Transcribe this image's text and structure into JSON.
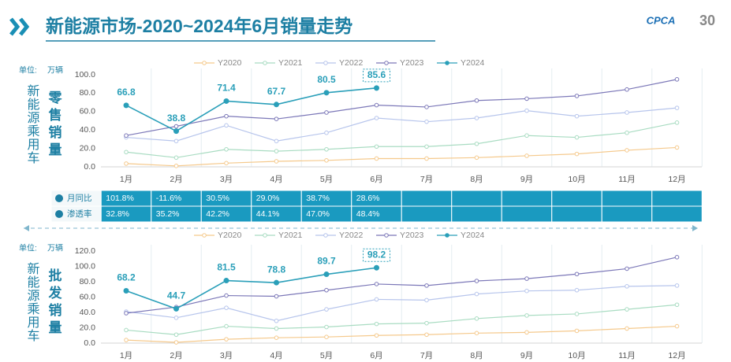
{
  "title": "新能源市场-2020~2024年6月销量走势",
  "logo": {
    "text": "CPCA",
    "badge": "30"
  },
  "chart_data": [
    {
      "type": "line",
      "unit_label": "单位:",
      "unit": "万辆",
      "side_label": "新能源乘用车",
      "y_label": "零售销量",
      "categories": [
        "1月",
        "2月",
        "3月",
        "4月",
        "5月",
        "6月",
        "7月",
        "8月",
        "9月",
        "10月",
        "11月",
        "12月"
      ],
      "ylim": [
        0,
        100
      ],
      "yticks": [
        {
          "value": 0,
          "label": "0.0"
        },
        {
          "value": 20,
          "label": "20.0"
        },
        {
          "value": 40,
          "label": "40.0"
        },
        {
          "value": 60,
          "label": "60.0"
        },
        {
          "value": 80,
          "label": "80.0"
        },
        {
          "value": 100,
          "label": "100.0"
        }
      ],
      "series": [
        {
          "name": "Y2020",
          "color": "#f5c98c",
          "values": [
            3.5,
            1,
            4,
            6,
            7,
            9,
            9,
            10,
            12,
            14,
            18,
            21
          ]
        },
        {
          "name": "Y2021",
          "color": "#a9dcc2",
          "values": [
            16,
            10,
            19,
            17,
            19,
            22,
            22,
            25,
            34,
            32,
            37,
            48
          ]
        },
        {
          "name": "Y2022",
          "color": "#b7c5ec",
          "values": [
            32,
            28,
            45,
            28,
            37,
            53,
            49,
            53,
            61,
            55,
            59,
            64
          ]
        },
        {
          "name": "Y2023",
          "color": "#7c78b8",
          "values": [
            34,
            44,
            55,
            52,
            59,
            67,
            65,
            72,
            74,
            77,
            84,
            95
          ]
        },
        {
          "name": "Y2024",
          "color": "#2a9fb9",
          "values": [
            66.8,
            38.8,
            71.4,
            67.7,
            80.5,
            85.6,
            null,
            null,
            null,
            null,
            null,
            null
          ],
          "labels": true
        }
      ]
    },
    {
      "type": "line",
      "unit_label": "单位:",
      "unit": "万辆",
      "side_label": "新能源乘用车",
      "y_label": "批发销量",
      "categories": [
        "1月",
        "2月",
        "3月",
        "4月",
        "5月",
        "6月",
        "7月",
        "8月",
        "9月",
        "10月",
        "11月",
        "12月"
      ],
      "ylim": [
        0,
        120
      ],
      "yticks": [
        {
          "value": 0,
          "label": "0.0"
        },
        {
          "value": 20,
          "label": "20.0"
        },
        {
          "value": 40,
          "label": "40.0"
        },
        {
          "value": 60,
          "label": "60.0"
        },
        {
          "value": 80,
          "label": "80.0"
        },
        {
          "value": 100,
          "label": "100.0"
        },
        {
          "value": 120,
          "label": "120.0"
        }
      ],
      "series": [
        {
          "name": "Y2020",
          "color": "#f5c98c",
          "values": [
            4,
            1,
            5,
            7,
            8,
            10,
            11,
            13,
            14,
            16,
            19,
            22
          ]
        },
        {
          "name": "Y2021",
          "color": "#a9dcc2",
          "values": [
            17,
            11,
            22,
            19,
            21,
            25,
            26,
            32,
            36,
            38,
            44,
            50
          ]
        },
        {
          "name": "Y2022",
          "color": "#b7c5ec",
          "values": [
            41,
            33,
            46,
            29,
            44,
            57,
            56,
            64,
            68,
            69,
            74,
            75
          ]
        },
        {
          "name": "Y2023",
          "color": "#7c78b8",
          "values": [
            39,
            47,
            62,
            61,
            69,
            77,
            75,
            81,
            84,
            90,
            97,
            112
          ]
        },
        {
          "name": "Y2024",
          "color": "#2a9fb9",
          "values": [
            68.2,
            44.7,
            81.5,
            78.8,
            89.7,
            98.2,
            null,
            null,
            null,
            null,
            null,
            null
          ],
          "labels": true
        }
      ]
    }
  ],
  "table": {
    "rows": [
      {
        "label": "月同比",
        "values": [
          "101.8%",
          "-11.6%",
          "30.5%",
          "29.0%",
          "38.7%",
          "28.6%"
        ]
      },
      {
        "label": "渗透率",
        "values": [
          "32.8%",
          "35.2%",
          "42.2%",
          "44.1%",
          "47.0%",
          "48.4%"
        ]
      }
    ]
  }
}
